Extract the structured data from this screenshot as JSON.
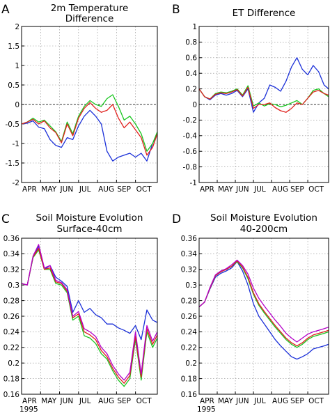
{
  "colors": {
    "blue": "#1a2fd8",
    "green": "#19c61f",
    "red": "#e0201c",
    "magenta": "#b400c8",
    "axis": "#000000",
    "grid": "#8a8a8a"
  },
  "chart_data": [
    {
      "type": "line",
      "letter": "A",
      "title": "2m Temperature",
      "subtitle": "Difference",
      "xlabel": "",
      "ylabel": "",
      "x_ticks": [
        "APR",
        "MAY",
        "JUN",
        "JUL",
        "AUG",
        "SEP",
        "OCT"
      ],
      "x_range": [
        0,
        7.15
      ],
      "ylim": [
        -2,
        2
      ],
      "y_ticks": [
        "-2",
        "-1.5",
        "-1",
        "-0.5",
        "0",
        "0.5",
        "1",
        "1.5",
        "2"
      ],
      "zero_line": true,
      "grid": true,
      "x": [
        0,
        0.3,
        0.6,
        0.9,
        1.2,
        1.5,
        1.8,
        2.1,
        2.4,
        2.7,
        3.0,
        3.3,
        3.6,
        3.9,
        4.2,
        4.5,
        4.8,
        5.1,
        5.4,
        5.7,
        6.0,
        6.3,
        6.6,
        6.9,
        7.15
      ],
      "series": [
        {
          "color": "blue",
          "values": [
            -0.5,
            -0.48,
            -0.42,
            -0.58,
            -0.62,
            -0.9,
            -1.05,
            -1.1,
            -0.85,
            -0.9,
            -0.55,
            -0.3,
            -0.15,
            -0.3,
            -0.5,
            -1.2,
            -1.45,
            -1.35,
            -1.3,
            -1.25,
            -1.35,
            -1.25,
            -1.45,
            -1.0,
            -0.75
          ]
        },
        {
          "color": "green",
          "values": [
            -0.5,
            -0.45,
            -0.35,
            -0.45,
            -0.4,
            -0.55,
            -0.7,
            -0.95,
            -0.45,
            -0.75,
            -0.3,
            -0.05,
            0.1,
            0.0,
            -0.05,
            0.15,
            0.25,
            -0.05,
            -0.4,
            -0.3,
            -0.5,
            -0.75,
            -1.2,
            -1.0,
            -0.7
          ]
        },
        {
          "color": "red",
          "values": [
            -0.5,
            -0.45,
            -0.38,
            -0.5,
            -0.42,
            -0.6,
            -0.72,
            -0.98,
            -0.5,
            -0.8,
            -0.35,
            -0.1,
            0.05,
            -0.1,
            -0.2,
            -0.15,
            0.0,
            -0.35,
            -0.6,
            -0.45,
            -0.65,
            -0.85,
            -1.3,
            -1.1,
            -0.75
          ]
        }
      ]
    },
    {
      "type": "line",
      "letter": "B",
      "title": "ET Difference",
      "subtitle": "",
      "xlabel": "",
      "ylabel": "",
      "x_ticks": [
        "APR",
        "MAY",
        "JUN",
        "JUL",
        "AUG",
        "SEP",
        "OCT"
      ],
      "x_range": [
        0,
        7.15
      ],
      "ylim": [
        -1,
        1
      ],
      "y_ticks": [
        "-1",
        "-0.8",
        "-0.6",
        "-0.4",
        "-0.2",
        "0",
        "0.2",
        "0.4",
        "0.6",
        "0.8",
        "1"
      ],
      "zero_line": true,
      "grid": true,
      "x": [
        0,
        0.3,
        0.6,
        0.9,
        1.2,
        1.5,
        1.8,
        2.1,
        2.4,
        2.7,
        3.0,
        3.3,
        3.6,
        3.9,
        4.2,
        4.5,
        4.8,
        5.1,
        5.4,
        5.7,
        6.0,
        6.3,
        6.6,
        6.9,
        7.15
      ],
      "series": [
        {
          "color": "blue",
          "values": [
            0.2,
            0.1,
            0.06,
            0.12,
            0.14,
            0.12,
            0.14,
            0.18,
            0.1,
            0.2,
            -0.1,
            0.02,
            0.08,
            0.25,
            0.22,
            0.17,
            0.3,
            0.48,
            0.6,
            0.45,
            0.38,
            0.5,
            0.42,
            0.25,
            0.2
          ]
        },
        {
          "color": "green",
          "values": [
            0.2,
            0.1,
            0.07,
            0.14,
            0.16,
            0.15,
            0.17,
            0.2,
            0.12,
            0.24,
            -0.02,
            0.02,
            -0.02,
            0.01,
            0.0,
            -0.03,
            -0.01,
            0.02,
            0.05,
            0.0,
            0.08,
            0.18,
            0.2,
            0.14,
            0.1
          ]
        },
        {
          "color": "red",
          "values": [
            0.2,
            0.1,
            0.07,
            0.13,
            0.15,
            0.14,
            0.16,
            0.19,
            0.11,
            0.22,
            -0.05,
            0.0,
            0.0,
            0.02,
            -0.04,
            -0.08,
            -0.1,
            -0.05,
            0.02,
            0.0,
            0.08,
            0.16,
            0.18,
            0.14,
            0.12
          ]
        }
      ]
    },
    {
      "type": "line",
      "letter": "C",
      "title": "Soil Moisture Evolution",
      "subtitle": "Surface-40cm",
      "xlabel": "",
      "ylabel": "",
      "x_ticks": [
        "APR",
        "MAY",
        "JUN",
        "JUL",
        "AUG",
        "SEP",
        "OCT"
      ],
      "year_label": "1995",
      "x_range": [
        0,
        7.15
      ],
      "ylim": [
        0.16,
        0.36
      ],
      "y_ticks": [
        "0.16",
        "0.18",
        "0.2",
        "0.22",
        "0.24",
        "0.26",
        "0.28",
        "0.3",
        "0.32",
        "0.34",
        "0.36"
      ],
      "zero_line": false,
      "grid": true,
      "x": [
        0,
        0.3,
        0.6,
        0.9,
        1.2,
        1.5,
        1.8,
        2.1,
        2.4,
        2.7,
        3.0,
        3.3,
        3.6,
        3.9,
        4.2,
        4.5,
        4.8,
        5.1,
        5.4,
        5.7,
        6.0,
        6.3,
        6.6,
        6.9,
        7.15
      ],
      "series": [
        {
          "color": "blue",
          "values": [
            0.302,
            0.3,
            0.335,
            0.35,
            0.32,
            0.325,
            0.31,
            0.305,
            0.298,
            0.265,
            0.28,
            0.265,
            0.27,
            0.262,
            0.258,
            0.25,
            0.25,
            0.245,
            0.242,
            0.238,
            0.248,
            0.23,
            0.268,
            0.255,
            0.252
          ]
        },
        {
          "color": "green",
          "values": [
            0.302,
            0.3,
            0.335,
            0.345,
            0.32,
            0.32,
            0.302,
            0.3,
            0.29,
            0.255,
            0.26,
            0.235,
            0.232,
            0.225,
            0.212,
            0.205,
            0.19,
            0.178,
            0.17,
            0.18,
            0.23,
            0.178,
            0.24,
            0.22,
            0.232
          ]
        },
        {
          "color": "red",
          "values": [
            0.302,
            0.3,
            0.336,
            0.347,
            0.32,
            0.322,
            0.304,
            0.302,
            0.292,
            0.258,
            0.263,
            0.24,
            0.236,
            0.23,
            0.216,
            0.208,
            0.193,
            0.182,
            0.174,
            0.184,
            0.234,
            0.182,
            0.244,
            0.224,
            0.236
          ]
        },
        {
          "color": "magenta",
          "values": [
            0.302,
            0.3,
            0.337,
            0.352,
            0.322,
            0.325,
            0.306,
            0.303,
            0.294,
            0.26,
            0.266,
            0.244,
            0.24,
            0.234,
            0.22,
            0.212,
            0.197,
            0.186,
            0.178,
            0.188,
            0.24,
            0.186,
            0.248,
            0.228,
            0.24
          ]
        }
      ]
    },
    {
      "type": "line",
      "letter": "D",
      "title": "Soil Moisture Evolution",
      "subtitle": "40-200cm",
      "xlabel": "",
      "ylabel": "",
      "x_ticks": [
        "APR",
        "MAY",
        "JUN",
        "JUL",
        "AUG",
        "SEP",
        "OCT"
      ],
      "year_label": "1995",
      "x_range": [
        0,
        7.15
      ],
      "ylim": [
        0.16,
        0.36
      ],
      "y_ticks": [
        "0.16",
        "0.18",
        "0.2",
        "0.22",
        "0.24",
        "0.26",
        "0.28",
        "0.3",
        "0.32",
        "0.34",
        "0.36"
      ],
      "zero_line": false,
      "grid": true,
      "x": [
        0,
        0.3,
        0.6,
        0.9,
        1.2,
        1.5,
        1.8,
        2.1,
        2.4,
        2.7,
        3.0,
        3.3,
        3.6,
        3.9,
        4.2,
        4.5,
        4.8,
        5.1,
        5.4,
        5.7,
        6.0,
        6.3,
        6.6,
        6.9,
        7.15
      ],
      "series": [
        {
          "color": "blue",
          "values": [
            0.272,
            0.278,
            0.295,
            0.31,
            0.315,
            0.318,
            0.322,
            0.33,
            0.318,
            0.3,
            0.276,
            0.26,
            0.25,
            0.24,
            0.23,
            0.222,
            0.215,
            0.208,
            0.205,
            0.208,
            0.212,
            0.218,
            0.22,
            0.222,
            0.224
          ]
        },
        {
          "color": "green",
          "values": [
            0.272,
            0.278,
            0.296,
            0.312,
            0.317,
            0.32,
            0.324,
            0.33,
            0.322,
            0.308,
            0.288,
            0.274,
            0.264,
            0.255,
            0.246,
            0.238,
            0.23,
            0.224,
            0.22,
            0.224,
            0.23,
            0.234,
            0.236,
            0.238,
            0.24
          ]
        },
        {
          "color": "red",
          "values": [
            0.272,
            0.278,
            0.296,
            0.312,
            0.317,
            0.32,
            0.324,
            0.331,
            0.323,
            0.31,
            0.29,
            0.276,
            0.266,
            0.257,
            0.248,
            0.24,
            0.232,
            0.226,
            0.222,
            0.226,
            0.232,
            0.236,
            0.238,
            0.24,
            0.242
          ]
        },
        {
          "color": "magenta",
          "values": [
            0.272,
            0.278,
            0.297,
            0.313,
            0.318,
            0.321,
            0.326,
            0.332,
            0.325,
            0.314,
            0.296,
            0.283,
            0.273,
            0.264,
            0.255,
            0.247,
            0.238,
            0.232,
            0.227,
            0.232,
            0.237,
            0.24,
            0.242,
            0.244,
            0.246
          ]
        }
      ]
    }
  ]
}
